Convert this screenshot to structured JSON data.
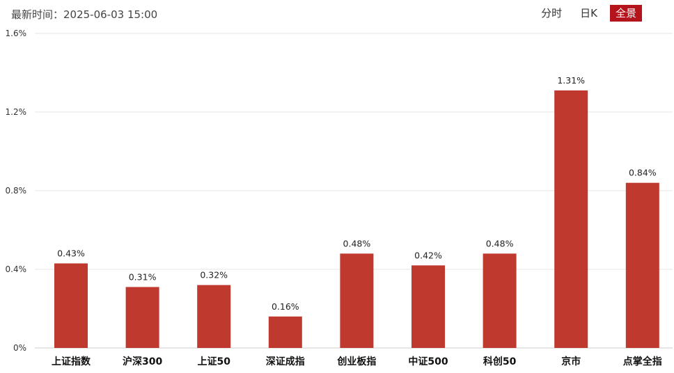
{
  "header": {
    "update_time": "最新时间：2025-06-03 15:00"
  },
  "tabs": [
    {
      "label": "分时",
      "active": false
    },
    {
      "label": "日K",
      "active": false
    },
    {
      "label": "全景",
      "active": true
    }
  ],
  "colors": {
    "bar": "#c0392f",
    "accent": "#b4141b",
    "grid": "#e6e6e6"
  },
  "chart_data": {
    "type": "bar",
    "categories": [
      "上证指数",
      "沪深300",
      "上证50",
      "深证成指",
      "创业板指",
      "中证500",
      "科创50",
      "京市",
      "点掌全指"
    ],
    "values": [
      0.43,
      0.31,
      0.32,
      0.16,
      0.48,
      0.42,
      0.48,
      1.31,
      0.84
    ],
    "value_labels": [
      "0.43%",
      "0.31%",
      "0.32%",
      "0.16%",
      "0.48%",
      "0.42%",
      "0.48%",
      "1.31%",
      "0.84%"
    ],
    "y_ticks": [
      0,
      0.4,
      0.8,
      1.2,
      1.6
    ],
    "y_tick_labels": [
      "0%",
      "0.4%",
      "0.8%",
      "1.2%",
      "1.6%"
    ],
    "ylim": [
      0,
      1.6
    ],
    "grid": true,
    "title": "",
    "xlabel": "",
    "ylabel": ""
  }
}
